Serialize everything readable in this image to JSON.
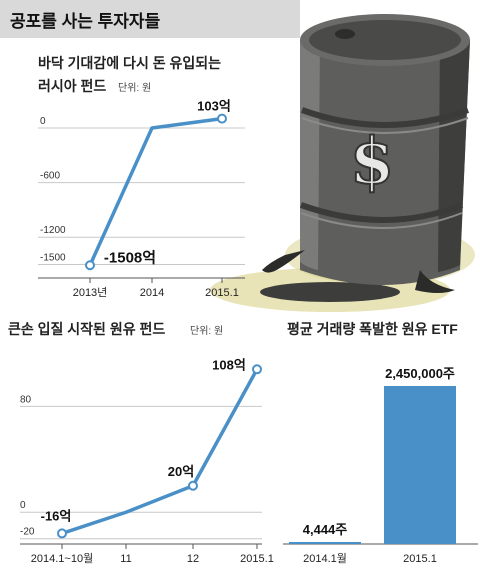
{
  "header": {
    "title": "공포를 사는 투자자들"
  },
  "chart_data": [
    {
      "type": "line",
      "title": "바닥 기대감에 다시 돈 유입되는",
      "subtitle": "러시아 펀드",
      "unit": "단위: 원",
      "categories": [
        "2013년",
        "2014",
        "2015.1"
      ],
      "values": [
        -1508,
        0,
        103
      ],
      "yticks": [
        0,
        -600,
        -1200,
        -1500
      ],
      "ylim": [
        -1560,
        110
      ],
      "data_labels": [
        {
          "point": 0,
          "text": "-1508억"
        },
        {
          "point": 2,
          "text": "103억"
        }
      ]
    },
    {
      "type": "line",
      "title": "큰손 입질 시작된 원유 펀드",
      "unit": "단위: 원",
      "categories": [
        "2014.1~10월",
        "11",
        "12",
        "2015.1"
      ],
      "values": [
        -16,
        0,
        20,
        108
      ],
      "yticks": [
        80,
        0,
        -20
      ],
      "ylim": [
        -24,
        112
      ],
      "data_labels": [
        {
          "point": 0,
          "text": "-16억"
        },
        {
          "point": 2,
          "text": "20억"
        },
        {
          "point": 3,
          "text": "108억"
        }
      ]
    },
    {
      "type": "bar",
      "title": "평균 거래량 폭발한 원유 ETF",
      "categories": [
        "2014.1월",
        "2015.1"
      ],
      "values": [
        4444,
        2450000
      ],
      "data_labels": [
        "4,444주",
        "2,450,000주"
      ],
      "ylim": [
        0,
        2450000
      ]
    }
  ],
  "colors": {
    "line": "#4a90c8",
    "bar": "#4a90c8",
    "title_band": "#d9d9d9",
    "grid": "#c8c8c8",
    "oil_drum": "#5a5a58",
    "oil_stain": "#d9d4a0"
  },
  "illustration": {
    "icon": "oil-drum-dollar-icon"
  }
}
